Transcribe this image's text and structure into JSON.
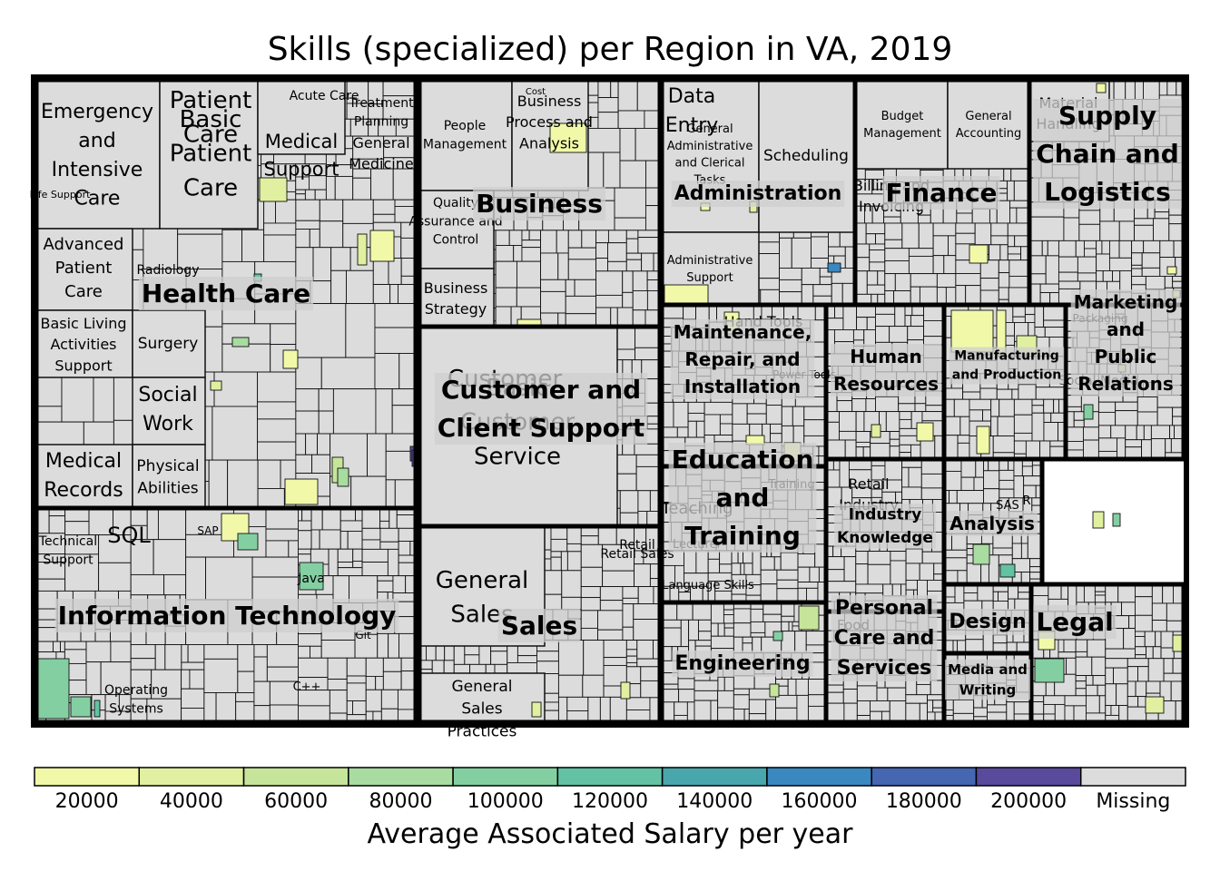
{
  "chart_data": {
    "type": "treemap",
    "title": "Skills (specialized) per Region in VA, 2019",
    "colorbar": {
      "label": "Average Associated Salary per year",
      "ticks": [
        "20000",
        "40000",
        "60000",
        "80000",
        "100000",
        "120000",
        "140000",
        "160000",
        "180000",
        "200000",
        "Missing"
      ],
      "colors": [
        "#f1f9a8",
        "#e0f0a0",
        "#c6e59b",
        "#a8dca0",
        "#84cfa2",
        "#63c2a4",
        "#48a6ad",
        "#3a88c0",
        "#4566b0",
        "#5a4a9c",
        "#dcdcdc"
      ]
    },
    "categories": [
      {
        "name": "Health Care",
        "skills": [
          "Emergency and Intensive Care",
          "Patient Care",
          "Basic Patient Care",
          "Medical Support",
          "Acute Care",
          "Treatment Planning",
          "General Medicine",
          "Life Support",
          "Advanced Patient Care",
          "Radiology",
          "Basic Living Activities Support",
          "Surgery",
          "Social Work",
          "Medical Records",
          "Physical Abilities"
        ]
      },
      {
        "name": "Information Technology",
        "skills": [
          "Technical Support",
          "SQL",
          "SAP",
          "Java",
          "Git",
          "C++",
          "Operating Systems"
        ]
      },
      {
        "name": "Business",
        "skills": [
          "People Management",
          "Cost",
          "Business Process and Analysis",
          "Quality Assurance and Control",
          "Business Strategy"
        ]
      },
      {
        "name": "Customer and Client Support",
        "skills": [
          "Customer",
          "Basic Customer Service"
        ]
      },
      {
        "name": "Sales",
        "skills": [
          "General Sales",
          "Retail",
          "Retail Sales",
          "General Sales Practices"
        ]
      },
      {
        "name": "Administration",
        "skills": [
          "Data Entry",
          "General Administrative and Clerical Tasks",
          "Scheduling",
          "Administrative Support"
        ]
      },
      {
        "name": "Finance",
        "skills": [
          "Budget Management",
          "General Accounting",
          "Billing and Invoicing"
        ]
      },
      {
        "name": "Supply Chain and Logistics",
        "skills": [
          "Material Handling"
        ]
      },
      {
        "name": "Maintenance, Repair, and Installation",
        "skills": [
          "Hand Tools",
          "Power Tools"
        ]
      },
      {
        "name": "Human Resources",
        "skills": []
      },
      {
        "name": "Manufacturing and Production",
        "skills": []
      },
      {
        "name": "Marketing and Public Relations",
        "skills": [
          "Packaging",
          "Social Media"
        ]
      },
      {
        "name": "Education and Training",
        "skills": [
          "Teaching",
          "Training",
          "Lecturer",
          "Language Skills"
        ]
      },
      {
        "name": "Engineering",
        "skills": []
      },
      {
        "name": "Industry Knowledge",
        "skills": [
          "Retail Industry"
        ]
      },
      {
        "name": "Analysis",
        "skills": [
          "SAS",
          "R"
        ]
      },
      {
        "name": "Personal Care and Services",
        "skills": [
          "Food"
        ]
      },
      {
        "name": "Design",
        "skills": []
      },
      {
        "name": "Legal",
        "skills": []
      },
      {
        "name": "Media and Writing",
        "skills": []
      }
    ]
  }
}
